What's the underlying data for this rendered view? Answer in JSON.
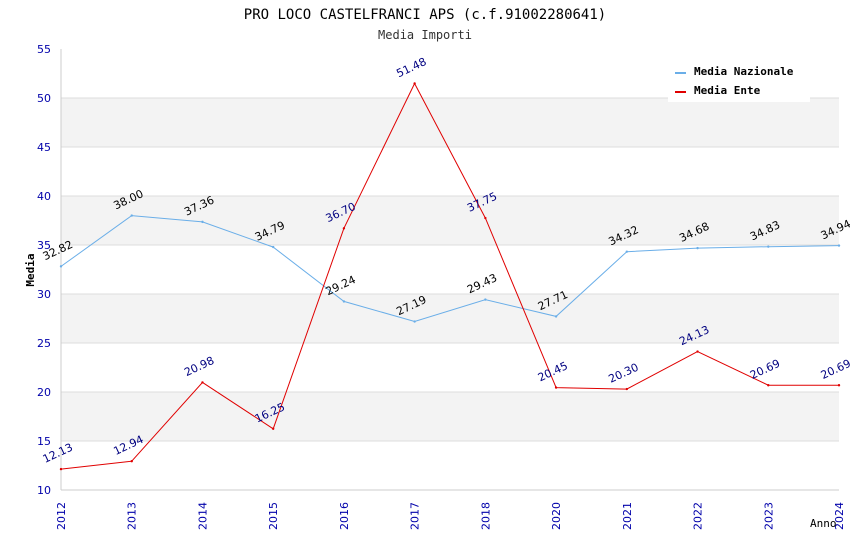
{
  "chart_data": {
    "type": "line",
    "title": "PRO LOCO CASTELFRANCI APS (c.f.91002280641)",
    "subtitle": "Media Importi",
    "xlabel": "Anno",
    "ylabel": "Media",
    "ylim": [
      10,
      55
    ],
    "yticks": [
      10,
      15,
      20,
      25,
      30,
      35,
      40,
      45,
      50,
      55
    ],
    "categories": [
      "2012",
      "2013",
      "2014",
      "2015",
      "2016",
      "2017",
      "2018",
      "2020",
      "2021",
      "2022",
      "2023",
      "2024"
    ],
    "grid": true,
    "legend_position": "top-right",
    "series": [
      {
        "name": "Media Nazionale",
        "color": "#6aaee8",
        "label_color": "#000000",
        "values": [
          32.82,
          38.0,
          37.36,
          34.79,
          29.24,
          27.19,
          29.43,
          27.71,
          34.32,
          34.68,
          34.83,
          34.94
        ],
        "labels": [
          "32.82",
          "38.00",
          "37.36",
          "34.79",
          "29.24",
          "27.19",
          "29.43",
          "27.71",
          "34.32",
          "34.68",
          "34.83",
          "34.94"
        ]
      },
      {
        "name": "Media Ente",
        "color": "#e00000",
        "label_color": "#000080",
        "values": [
          12.13,
          12.94,
          20.98,
          16.25,
          36.7,
          51.48,
          37.75,
          20.45,
          20.3,
          24.13,
          20.69,
          20.69
        ],
        "labels": [
          "12.13",
          "12.94",
          "20.98",
          "16.25",
          "36.70",
          "51.48",
          "37.75",
          "20.45",
          "20.30",
          "24.13",
          "20.69",
          "20.69"
        ]
      }
    ]
  }
}
